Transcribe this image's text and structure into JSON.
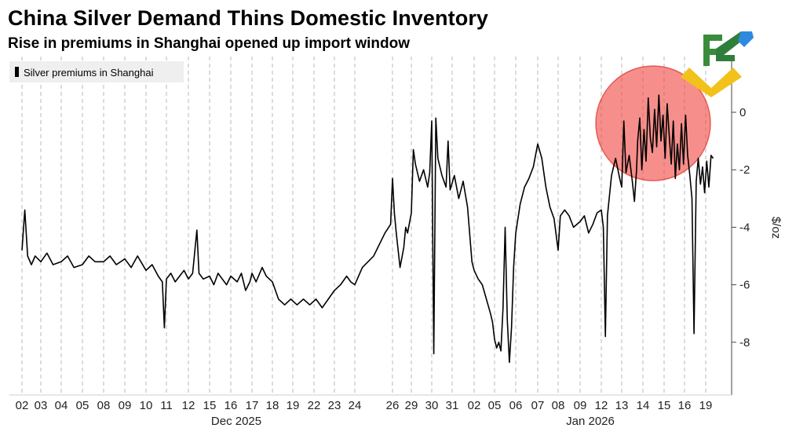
{
  "header": {
    "title": "China Silver Demand Thins Domestic Inventory",
    "subtitle": "Rise in premiums in Shanghai opened up import window"
  },
  "chart_data": {
    "type": "line",
    "title": "China Silver Demand Thins Domestic Inventory",
    "subtitle": "Rise in premiums in Shanghai opened up import window",
    "ylabel": "$/oz",
    "ylim": [
      -9.5,
      1
    ],
    "yticks": [
      0,
      -2,
      -4,
      -6,
      -8
    ],
    "ytick_labels": [
      "0",
      "-2",
      "-4",
      "-6",
      "-8"
    ],
    "xtick_labels": [
      "02",
      "03",
      "04",
      "05",
      "08",
      "09",
      "10",
      "11",
      "12",
      "15",
      "16",
      "17",
      "18",
      "19",
      "22",
      "23",
      "24",
      "26",
      "29",
      "30",
      "31",
      "02",
      "05",
      "06",
      "07",
      "08",
      "09",
      "12",
      "13",
      "14",
      "15",
      "16",
      "19"
    ],
    "month_labels": [
      "Dec 2025",
      "Jan 2026"
    ],
    "legend": [
      "Silver premiums in Shanghai"
    ],
    "legend_position": "top-left",
    "grid": "vertical dashed",
    "highlight": {
      "shape": "circle",
      "color": "#f0443e",
      "x_range": [
        "13",
        "16"
      ],
      "y_center": -0.7
    },
    "series": [
      {
        "name": "Silver premiums in Shanghai",
        "color": "#000000",
        "points": [
          [
            0,
            -4.8
          ],
          [
            0.15,
            -3.4
          ],
          [
            0.3,
            -5.0
          ],
          [
            0.5,
            -5.3
          ],
          [
            0.7,
            -5.0
          ],
          [
            1.0,
            -5.2
          ],
          [
            1.3,
            -4.9
          ],
          [
            1.6,
            -5.3
          ],
          [
            2.0,
            -5.2
          ],
          [
            2.3,
            -5.0
          ],
          [
            2.6,
            -5.4
          ],
          [
            3.0,
            -5.3
          ],
          [
            3.3,
            -5.0
          ],
          [
            3.6,
            -5.2
          ],
          [
            4.0,
            -5.2
          ],
          [
            4.3,
            -5.0
          ],
          [
            4.6,
            -5.3
          ],
          [
            5.0,
            -5.1
          ],
          [
            5.3,
            -5.4
          ],
          [
            5.6,
            -5.0
          ],
          [
            6.0,
            -5.5
          ],
          [
            6.3,
            -5.3
          ],
          [
            6.6,
            -5.7
          ],
          [
            6.8,
            -5.9
          ],
          [
            6.9,
            -7.5
          ],
          [
            7.0,
            -5.8
          ],
          [
            7.2,
            -5.6
          ],
          [
            7.4,
            -5.9
          ],
          [
            7.6,
            -5.7
          ],
          [
            7.8,
            -5.5
          ],
          [
            8.0,
            -5.8
          ],
          [
            8.2,
            -5.6
          ],
          [
            8.4,
            -4.1
          ],
          [
            8.5,
            -5.6
          ],
          [
            8.7,
            -5.8
          ],
          [
            9.0,
            -5.7
          ],
          [
            9.2,
            -6.0
          ],
          [
            9.4,
            -5.6
          ],
          [
            9.6,
            -5.8
          ],
          [
            9.8,
            -6.0
          ],
          [
            10.0,
            -5.7
          ],
          [
            10.3,
            -5.9
          ],
          [
            10.5,
            -5.6
          ],
          [
            10.7,
            -6.2
          ],
          [
            10.9,
            -5.9
          ],
          [
            11.0,
            -5.6
          ],
          [
            11.2,
            -5.9
          ],
          [
            11.5,
            -5.4
          ],
          [
            11.7,
            -5.7
          ],
          [
            12.0,
            -5.9
          ],
          [
            12.3,
            -6.5
          ],
          [
            12.6,
            -6.7
          ],
          [
            12.9,
            -6.5
          ],
          [
            13.2,
            -6.7
          ],
          [
            13.5,
            -6.5
          ],
          [
            13.8,
            -6.7
          ],
          [
            14.1,
            -6.5
          ],
          [
            14.4,
            -6.8
          ],
          [
            14.7,
            -6.5
          ],
          [
            15.0,
            -6.2
          ],
          [
            15.3,
            -6.0
          ],
          [
            15.6,
            -5.7
          ],
          [
            15.8,
            -5.9
          ],
          [
            16.0,
            -6.0
          ],
          [
            16.2,
            -5.4
          ],
          [
            16.5,
            -5.0
          ],
          [
            16.8,
            -4.2
          ],
          [
            16.95,
            -3.9
          ],
          [
            17.0,
            -2.3
          ],
          [
            17.1,
            -3.5
          ],
          [
            17.2,
            -4.2
          ],
          [
            17.4,
            -5.4
          ],
          [
            17.6,
            -4.7
          ],
          [
            17.7,
            -4.0
          ],
          [
            17.8,
            -4.2
          ],
          [
            18.0,
            -3.5
          ],
          [
            18.1,
            -1.3
          ],
          [
            18.2,
            -1.8
          ],
          [
            18.4,
            -2.4
          ],
          [
            18.6,
            -2.0
          ],
          [
            18.8,
            -2.6
          ],
          [
            18.9,
            -2.1
          ],
          [
            19.0,
            -0.3
          ],
          [
            19.1,
            -8.4
          ],
          [
            19.2,
            -0.2
          ],
          [
            19.3,
            -1.6
          ],
          [
            19.5,
            -2.2
          ],
          [
            19.7,
            -2.6
          ],
          [
            19.8,
            -1.0
          ],
          [
            19.9,
            -2.7
          ],
          [
            20.1,
            -2.2
          ],
          [
            20.3,
            -3.0
          ],
          [
            20.5,
            -2.4
          ],
          [
            20.7,
            -3.3
          ],
          [
            20.9,
            -5.2
          ],
          [
            21.0,
            -5.5
          ],
          [
            21.2,
            -5.8
          ],
          [
            21.4,
            -6.0
          ],
          [
            21.6,
            -6.5
          ],
          [
            21.8,
            -7.0
          ],
          [
            21.9,
            -7.3
          ],
          [
            22.0,
            -7.9
          ],
          [
            22.1,
            -8.2
          ],
          [
            22.2,
            -8.0
          ],
          [
            22.3,
            -8.3
          ],
          [
            22.4,
            -6.8
          ],
          [
            22.5,
            -4.0
          ],
          [
            22.6,
            -7.2
          ],
          [
            22.7,
            -8.7
          ],
          [
            22.8,
            -7.5
          ],
          [
            22.9,
            -5.4
          ],
          [
            23.0,
            -4.2
          ],
          [
            23.2,
            -3.2
          ],
          [
            23.4,
            -2.6
          ],
          [
            23.6,
            -2.3
          ],
          [
            23.8,
            -1.9
          ],
          [
            24.0,
            -1.1
          ],
          [
            24.2,
            -1.6
          ],
          [
            24.4,
            -2.6
          ],
          [
            24.6,
            -3.3
          ],
          [
            24.8,
            -3.7
          ],
          [
            25.0,
            -4.8
          ],
          [
            25.1,
            -3.6
          ],
          [
            25.3,
            -3.4
          ],
          [
            25.5,
            -3.6
          ],
          [
            25.7,
            -4.0
          ],
          [
            26.0,
            -3.8
          ],
          [
            26.2,
            -3.6
          ],
          [
            26.4,
            -4.2
          ],
          [
            26.6,
            -3.9
          ],
          [
            26.8,
            -3.5
          ],
          [
            27.0,
            -3.4
          ],
          [
            27.1,
            -4.0
          ],
          [
            27.2,
            -7.8
          ],
          [
            27.3,
            -3.6
          ],
          [
            27.5,
            -2.2
          ],
          [
            27.7,
            -1.6
          ],
          [
            27.9,
            -2.3
          ],
          [
            28.0,
            -2.6
          ],
          [
            28.1,
            -0.3
          ],
          [
            28.2,
            -2.1
          ],
          [
            28.35,
            -1.5
          ],
          [
            28.5,
            -2.4
          ],
          [
            28.6,
            -3.1
          ],
          [
            28.7,
            -2.0
          ],
          [
            28.75,
            -1.0
          ],
          [
            28.85,
            -0.2
          ],
          [
            28.95,
            -2.0
          ],
          [
            29.05,
            -0.6
          ],
          [
            29.15,
            -1.7
          ],
          [
            29.25,
            0.5
          ],
          [
            29.35,
            -0.9
          ],
          [
            29.45,
            -1.4
          ],
          [
            29.55,
            0.1
          ],
          [
            29.65,
            -1.2
          ],
          [
            29.75,
            0.6
          ],
          [
            29.85,
            -1.0
          ],
          [
            29.95,
            -0.1
          ],
          [
            30.05,
            -1.6
          ],
          [
            30.15,
            0.3
          ],
          [
            30.25,
            -0.8
          ],
          [
            30.35,
            -1.8
          ],
          [
            30.45,
            -0.3
          ],
          [
            30.55,
            -2.3
          ],
          [
            30.65,
            -1.1
          ],
          [
            30.75,
            -2.0
          ],
          [
            30.85,
            -0.4
          ],
          [
            30.95,
            -1.8
          ],
          [
            31.05,
            -0.1
          ],
          [
            31.15,
            -1.5
          ],
          [
            31.25,
            -2.2
          ],
          [
            31.35,
            -3.0
          ],
          [
            31.45,
            -7.7
          ],
          [
            31.55,
            -2.4
          ],
          [
            31.65,
            -1.6
          ],
          [
            31.75,
            -2.5
          ],
          [
            31.85,
            -1.9
          ],
          [
            31.95,
            -2.8
          ],
          [
            32.05,
            -1.7
          ],
          [
            32.15,
            -2.6
          ],
          [
            32.25,
            -1.5
          ],
          [
            32.35,
            -1.6
          ]
        ]
      }
    ]
  }
}
